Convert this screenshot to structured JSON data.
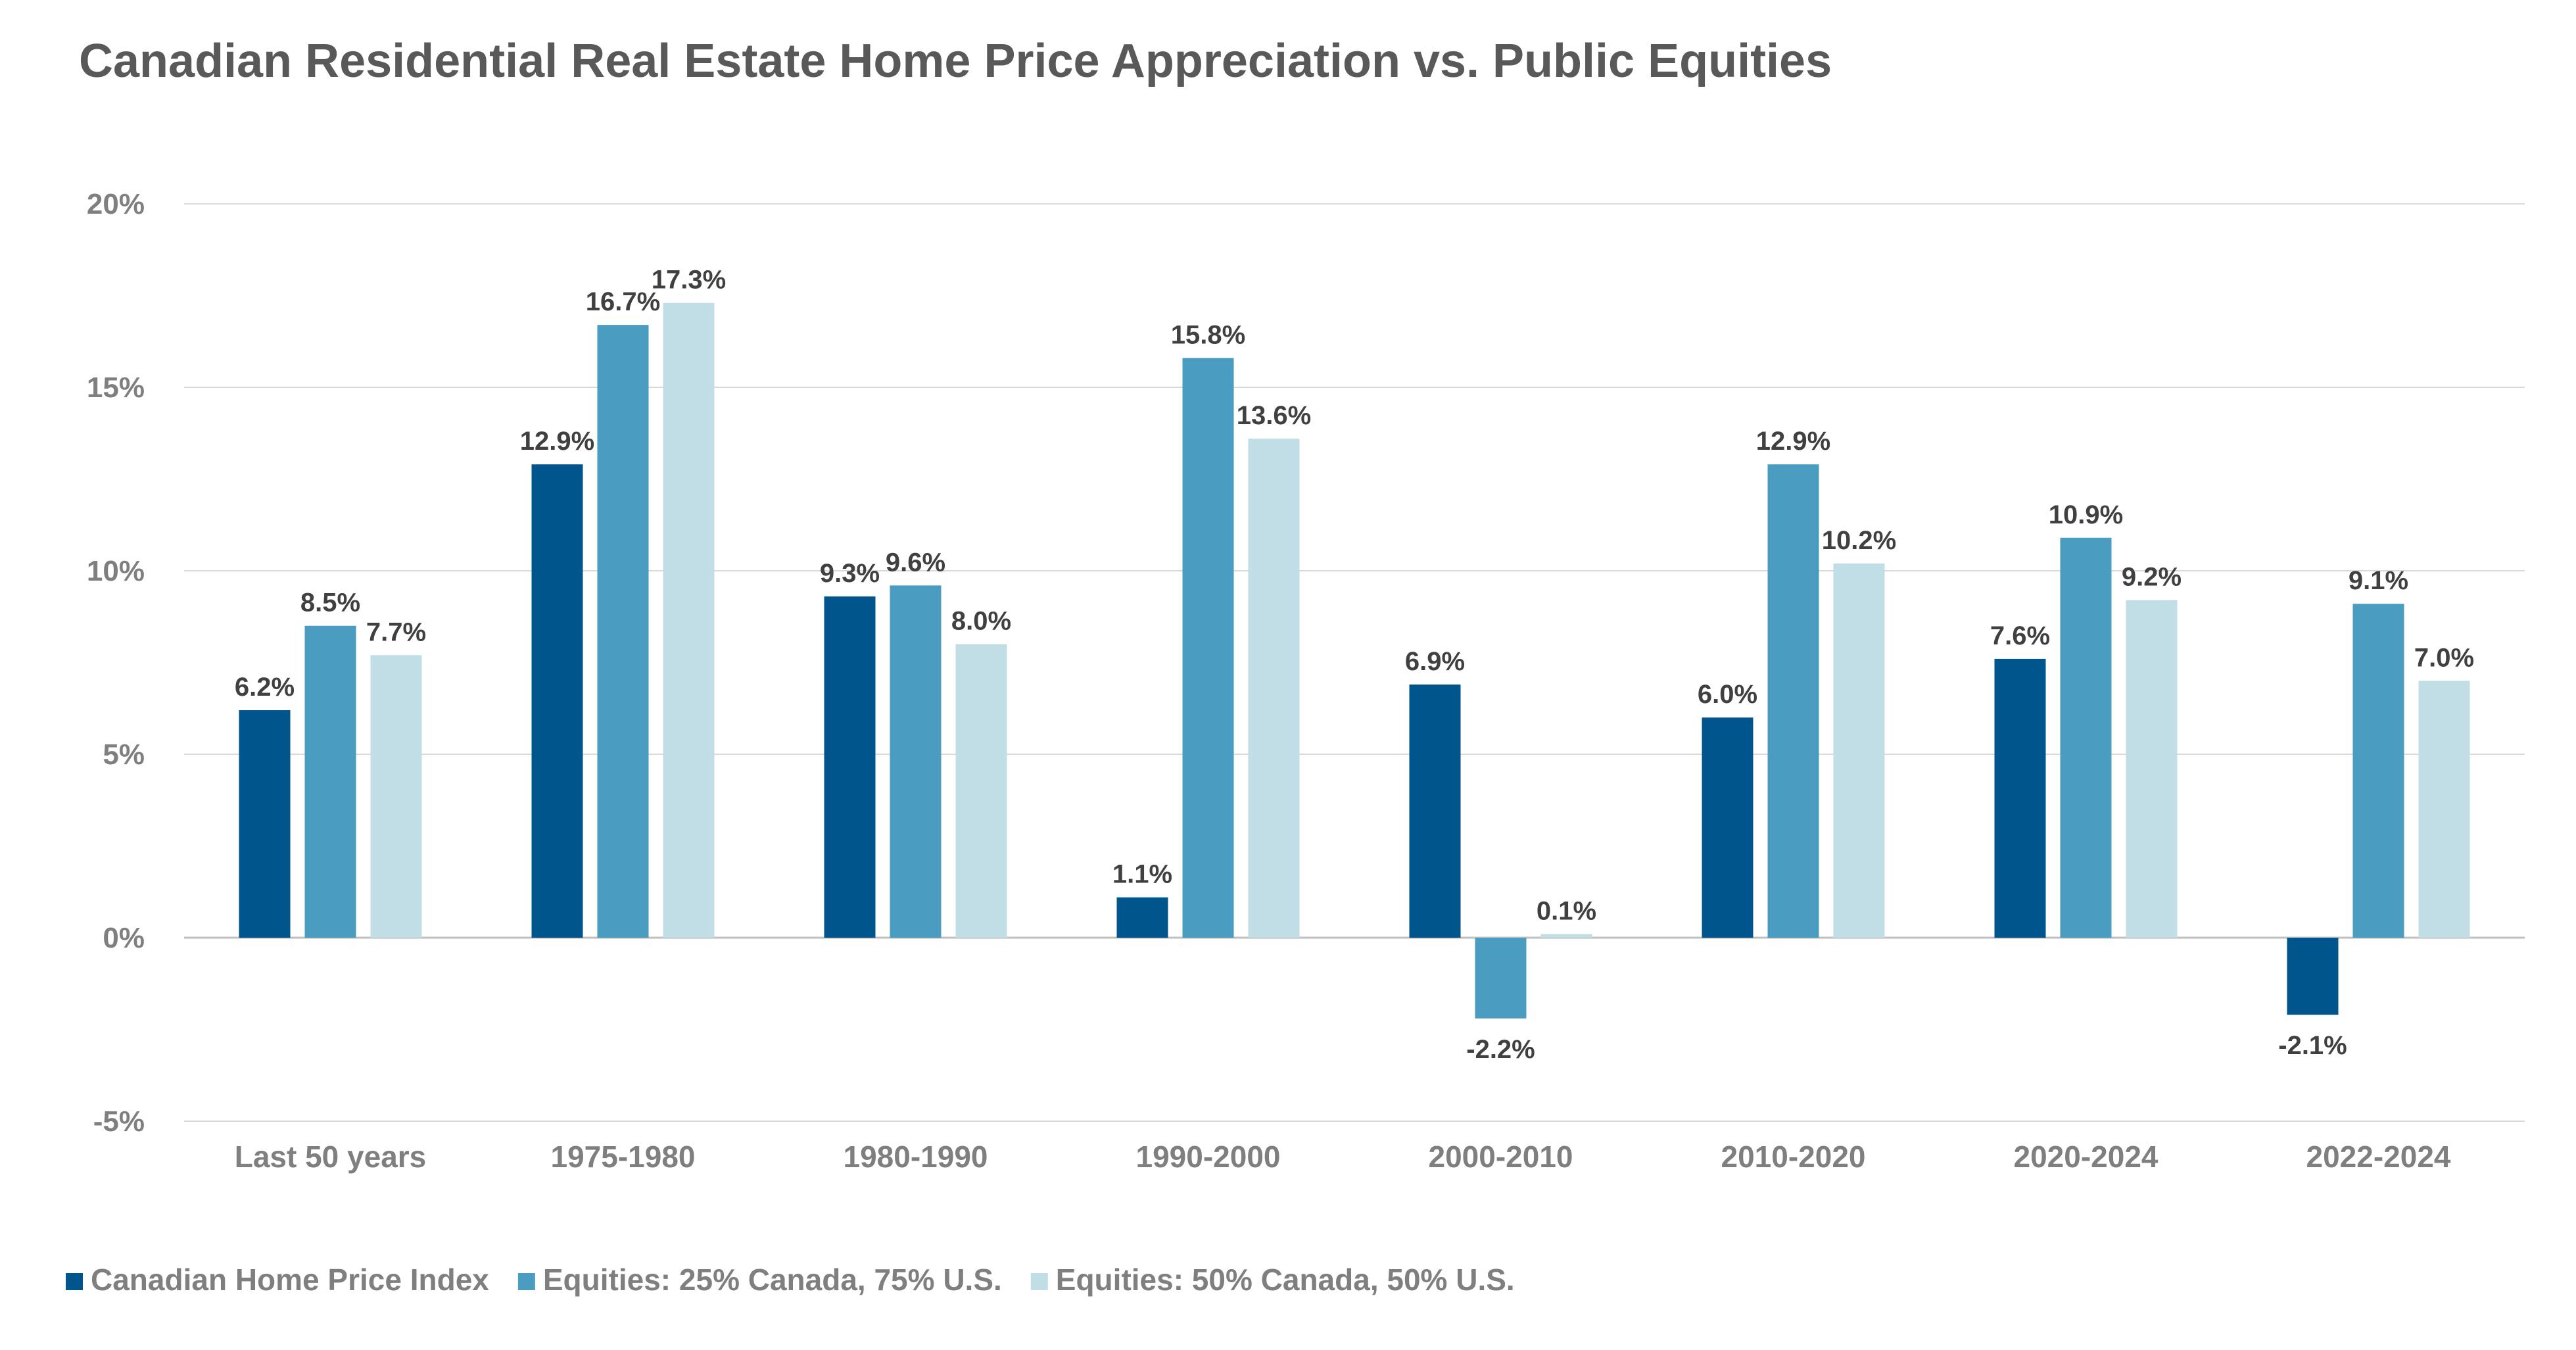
{
  "chart_data": {
    "type": "bar",
    "title": "Canadian Residential Real Estate Home Price Appreciation vs. Public Equities",
    "xlabel": "",
    "ylabel": "",
    "ylim": [
      -5,
      20
    ],
    "y_ticks": [
      -5,
      0,
      5,
      10,
      15,
      20
    ],
    "y_tick_labels": [
      "-5%",
      "0%",
      "5%",
      "10%",
      "15%",
      "20%"
    ],
    "grid": true,
    "legend_position": "bottom-left",
    "categories": [
      "Last 50 years",
      "1975-1980",
      "1980-1990",
      "1990-2000",
      "2000-2010",
      "2010-2020",
      "2020-2024",
      "2022-2024"
    ],
    "series": [
      {
        "name": "Canadian Home Price Index",
        "color": "#00568c",
        "values": [
          6.2,
          12.9,
          9.3,
          1.1,
          6.9,
          6.0,
          7.6,
          -2.1
        ],
        "labels": [
          "6.2%",
          "12.9%",
          "9.3%",
          "1.1%",
          "6.9%",
          "6.0%",
          "7.6%",
          "-2.1%"
        ]
      },
      {
        "name": "Equities: 25% Canada, 75% U.S.",
        "color": "#4a9cc0",
        "values": [
          8.5,
          16.7,
          9.6,
          15.8,
          -2.2,
          12.9,
          10.9,
          9.1
        ],
        "labels": [
          "8.5%",
          "16.7%",
          "9.6%",
          "15.8%",
          "-2.2%",
          "12.9%",
          "10.9%",
          "9.1%"
        ]
      },
      {
        "name": "Equities: 50% Canada, 50% U.S.",
        "color": "#c1dde5",
        "values": [
          7.7,
          17.3,
          8.0,
          13.6,
          0.1,
          10.2,
          9.2,
          7.0
        ],
        "labels": [
          "7.7%",
          "17.3%",
          "8.0%",
          "13.6%",
          "0.1%",
          "10.2%",
          "9.2%",
          "7.0%"
        ]
      }
    ]
  }
}
